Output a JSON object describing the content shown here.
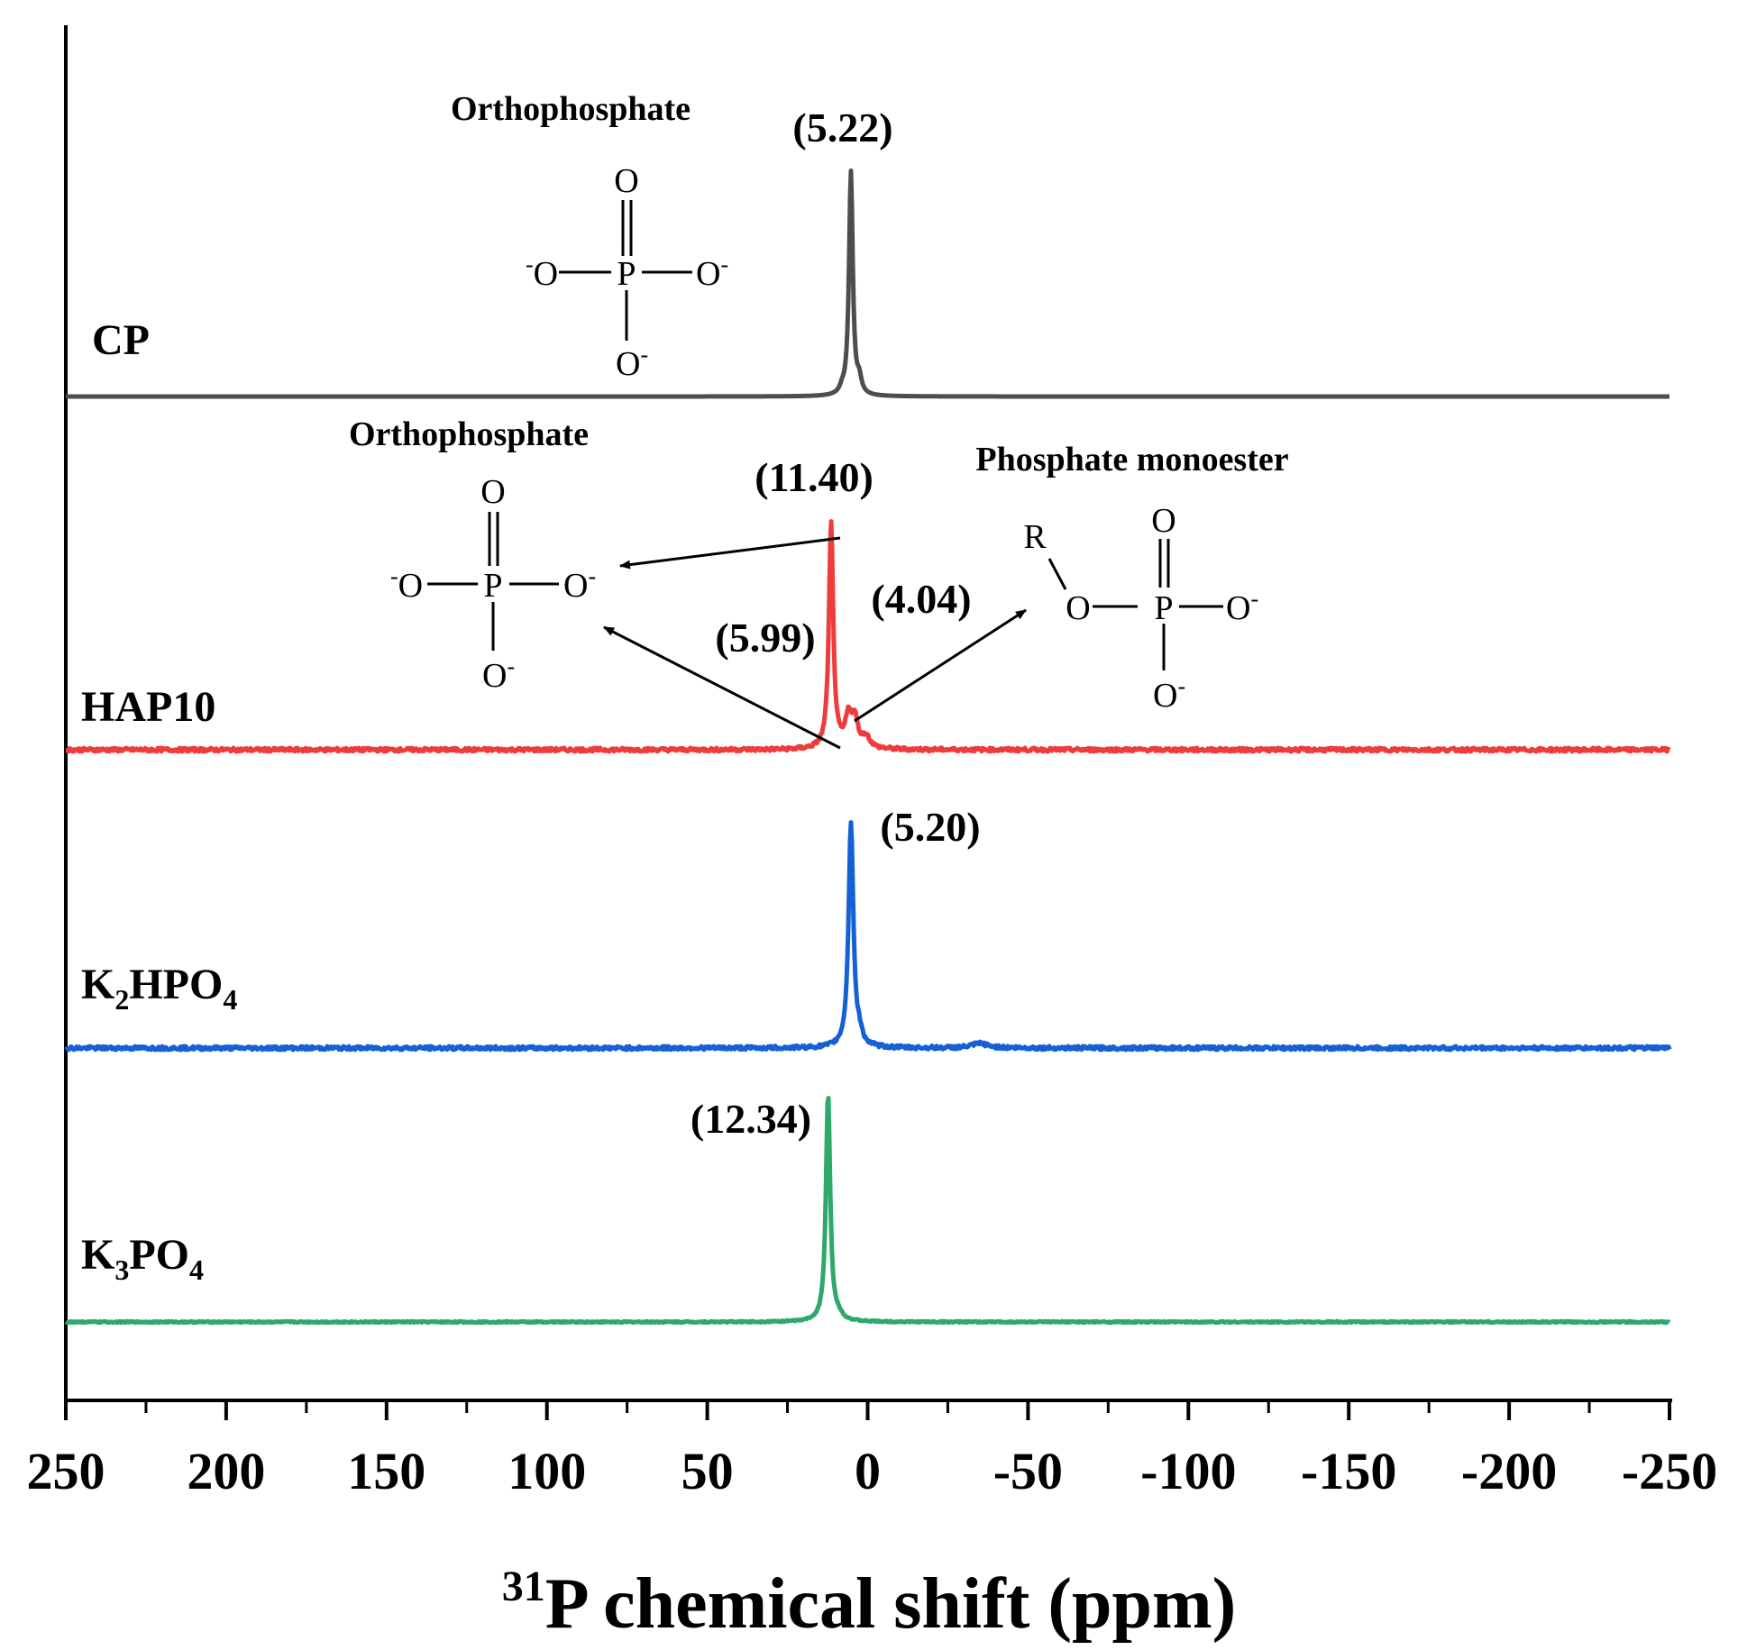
{
  "chart_data": {
    "type": "line",
    "xlabel_sup": "31",
    "xlabel": "P chemical shift (ppm)",
    "xlim": [
      250,
      -250
    ],
    "xticks": [
      250,
      200,
      150,
      100,
      50,
      0,
      -50,
      -100,
      -150,
      -200,
      -250
    ],
    "xtick_labels": [
      "250",
      "200",
      "150",
      "100",
      "50",
      "0",
      "-50",
      "-100",
      "-150",
      "-200",
      "-250"
    ],
    "y_axis_visible": false,
    "series": [
      {
        "name": "CP",
        "label_main": "CP",
        "label_sub1": "",
        "label_mid": "",
        "label_sub2": "",
        "color": "#4d4d4d",
        "noise": 0.0,
        "peaks": [
          {
            "ppm": 5.22,
            "height": 1.0,
            "width": 0.7
          },
          {
            "ppm": 2.6,
            "height": 0.06,
            "width": 0.8
          },
          {
            "ppm": 8.0,
            "height": 0.02,
            "width": 0.8
          }
        ],
        "peak_labels": [
          "(5.22)"
        ]
      },
      {
        "name": "HAP10",
        "label_main": "HAP10",
        "label_sub1": "",
        "label_mid": "",
        "label_sub2": "",
        "color": "#ee3b3b",
        "noise": 0.008,
        "peaks": [
          {
            "ppm": 11.4,
            "height": 1.0,
            "width": 0.8
          },
          {
            "ppm": 5.99,
            "height": 0.13,
            "width": 1.2
          },
          {
            "ppm": 4.04,
            "height": 0.12,
            "width": 1.2
          },
          {
            "ppm": 0.5,
            "height": 0.05,
            "width": 1.5
          }
        ],
        "peak_labels": [
          "(11.40)",
          "(5.99)",
          "(4.04)"
        ]
      },
      {
        "name": "K2HPO4",
        "label_main": "K",
        "label_sub1": "2",
        "label_mid": "HPO",
        "label_sub2": "4",
        "color": "#1560d4",
        "noise": 0.008,
        "peaks": [
          {
            "ppm": 5.2,
            "height": 1.0,
            "width": 0.9
          },
          {
            "ppm": 2.5,
            "height": 0.04,
            "width": 1.0
          },
          {
            "ppm": -35,
            "height": 0.02,
            "width": 3.0
          }
        ],
        "peak_labels": [
          "(5.20)"
        ]
      },
      {
        "name": "K3PO4",
        "label_main": "K",
        "label_sub1": "3",
        "label_mid": "PO",
        "label_sub2": "4",
        "color": "#2ea86b",
        "noise": 0.003,
        "peaks": [
          {
            "ppm": 12.34,
            "height": 1.0,
            "width": 0.8
          },
          {
            "ppm": 9.0,
            "height": 0.02,
            "width": 1.5
          }
        ],
        "peak_labels": [
          "(12.34)"
        ]
      }
    ],
    "annotations": {
      "cp_structure_title": "Orthophosphate",
      "hap_structure_title": "Orthophosphate",
      "monoester_title": "Phosphate monoester",
      "atoms": {
        "O": "O",
        "P": "P",
        "R": "R",
        "minus": "-"
      }
    }
  }
}
